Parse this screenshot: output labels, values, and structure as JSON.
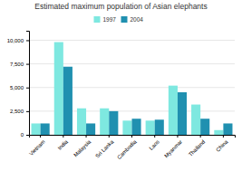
{
  "chart_data": {
    "type": "bar",
    "title": "Estimated maximum population of Asian elephants",
    "categories": [
      "Vietnam",
      "India",
      "Malaysia",
      "Sri Lanka",
      "Cambodia",
      "Laos",
      "Myanmar",
      "Thailand",
      "China"
    ],
    "series": [
      {
        "name": "1997",
        "color": "#7ee8e0",
        "values": [
          1200,
          9800,
          2800,
          2800,
          1500,
          1500,
          5200,
          3200,
          500
        ]
      },
      {
        "name": "2004",
        "color": "#2090b0",
        "values": [
          1200,
          7200,
          1200,
          2500,
          1700,
          1600,
          4500,
          1700,
          1200
        ]
      }
    ],
    "ylim": [
      0,
      11000
    ],
    "yticks": [
      0,
      {
        "value": 2500,
        "label": "2,500"
      },
      {
        "value": 5000,
        "label": "5,000"
      },
      {
        "value": 7500,
        "label": "7,500"
      },
      {
        "value": 10000,
        "label": "10,000"
      }
    ],
    "grid": true,
    "legend": "top"
  }
}
